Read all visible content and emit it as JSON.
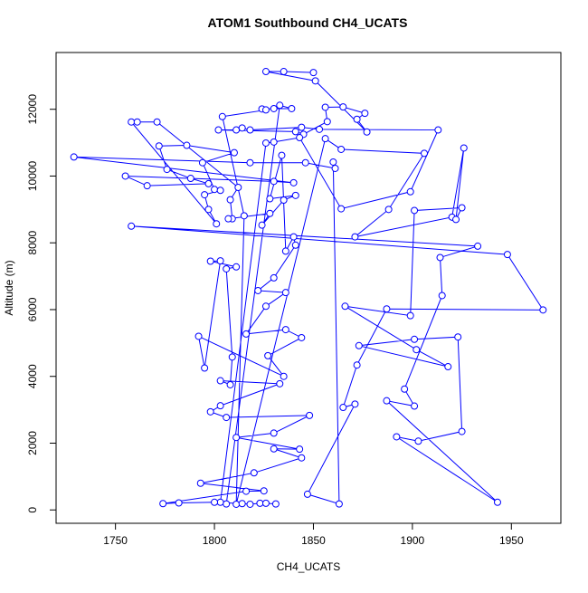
{
  "chart_data": {
    "type": "line",
    "title": "ATOM1 Southbound CH4_UCATS",
    "x_label": "CH4_UCATS",
    "y_label": "Altitude (m)",
    "color": "#0000ff",
    "markers": true,
    "xlim": [
      1720,
      1975
    ],
    "ylim": [
      -400,
      13700
    ],
    "xticks": [
      1750,
      1800,
      1850,
      1900,
      1950
    ],
    "yticks": [
      0,
      2000,
      4000,
      6000,
      8000,
      10000,
      12000
    ],
    "x": [
      1850,
      1835,
      1826,
      1851,
      1877,
      1872,
      1876,
      1865,
      1856,
      1857,
      1845,
      1841,
      1802,
      1811,
      1814,
      1818,
      1844,
      1853,
      1913,
      1899,
      1864,
      1843,
      1830,
      1826,
      1803,
      1806,
      1833,
      1839,
      1830,
      1824,
      1826,
      1804,
      1815,
      1811,
      1856,
      1864,
      1906,
      1888,
      1871,
      1920,
      1926,
      1922,
      1925,
      1901,
      1899,
      1866,
      1902,
      1918,
      1873,
      1901,
      1923,
      1925,
      1903,
      1892,
      1943,
      1887,
      1901,
      1896,
      1915,
      1914,
      1933,
      1758,
      1948,
      1966,
      1887,
      1872,
      1865,
      1871,
      1847,
      1863,
      1860,
      1861,
      1846,
      1818,
      1729,
      1840,
      1830,
      1755,
      1766,
      1797,
      1788,
      1776,
      1772,
      1786,
      1810,
      1794,
      1800,
      1803,
      1795,
      1797,
      1801,
      1758,
      1761,
      1771,
      1812,
      1808,
      1809,
      1807,
      1828,
      1824,
      1835,
      1841,
      1828,
      1834,
      1836,
      1840,
      1841,
      1830,
      1822,
      1836,
      1826,
      1816,
      1836,
      1844,
      1827,
      1835,
      1792,
      1795,
      1803,
      1798,
      1811,
      1806,
      1809,
      1808,
      1803,
      1833,
      1803,
      1798,
      1806,
      1848,
      1830,
      1811,
      1843,
      1830,
      1844,
      1820,
      1793,
      1825,
      1816,
      1774,
      1782,
      1800,
      1814,
      1818,
      1823,
      1826,
      1831
    ],
    "values": [
      13100,
      13130,
      13130,
      12850,
      11320,
      11700,
      11880,
      12070,
      12060,
      11630,
      11250,
      11330,
      11380,
      11380,
      11440,
      11380,
      11460,
      11400,
      11380,
      9530,
      9020,
      11150,
      11020,
      10990,
      230,
      180,
      12120,
      12020,
      12020,
      12010,
      11980,
      11780,
      8810,
      170,
      11120,
      10800,
      10680,
      9000,
      8180,
      8770,
      10840,
      8700,
      9050,
      8970,
      5820,
      6100,
      4800,
      4290,
      4920,
      5110,
      5180,
      2350,
      2060,
      2190,
      230,
      3270,
      3110,
      3620,
      6420,
      7560,
      7900,
      8500,
      7650,
      5990,
      6020,
      4340,
      3070,
      3170,
      470,
      180,
      10420,
      10230,
      10400,
      10400,
      10570,
      9800,
      9840,
      10000,
      9710,
      9770,
      9930,
      10200,
      10900,
      10920,
      10700,
      10400,
      9600,
      9570,
      9440,
      9000,
      8570,
      11620,
      11620,
      11620,
      9660,
      9290,
      8720,
      8720,
      8880,
      8530,
      9280,
      9420,
      9320,
      10620,
      7750,
      8180,
      7930,
      6950,
      6570,
      6510,
      6100,
      5270,
      5400,
      5160,
      4620,
      4000,
      5200,
      4250,
      7460,
      7450,
      7280,
      7220,
      4580,
      3750,
      3870,
      3780,
      3120,
      2940,
      2770,
      2830,
      2300,
      2170,
      1820,
      1830,
      1560,
      1110,
      800,
      570,
      560,
      190,
      210,
      230,
      190,
      170,
      200,
      200,
      180
    ]
  }
}
